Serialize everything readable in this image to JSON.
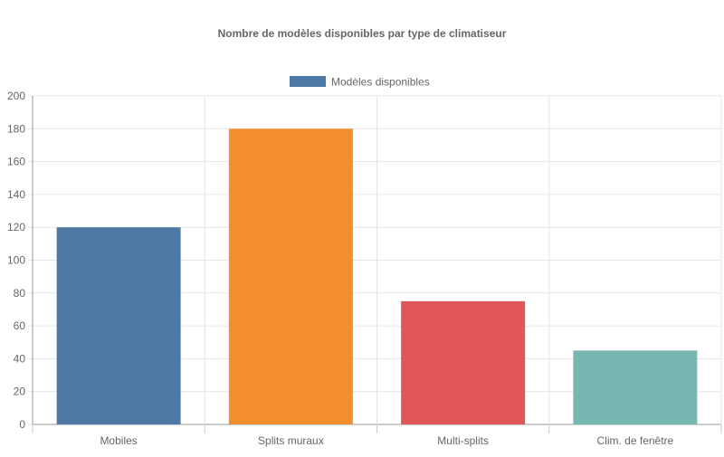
{
  "chart_data": {
    "type": "bar",
    "title": "Nombre de modèles disponibles par type de climatiseur",
    "categories": [
      "Mobiles",
      "Splits muraux",
      "Multi-splits",
      "Clim. de fenêtre"
    ],
    "series": [
      {
        "name": "Modèles disponibles",
        "values": [
          120,
          180,
          75,
          45
        ]
      }
    ],
    "bar_colors": [
      "#4e79a7",
      "#f28e2b",
      "#e15759",
      "#76b7b2"
    ],
    "legend_color": "#4e79a7",
    "ylim": [
      0,
      200
    ],
    "yticks": [
      0,
      20,
      40,
      60,
      80,
      100,
      120,
      140,
      160,
      180,
      200
    ],
    "grid": true,
    "legend_position": "top"
  }
}
